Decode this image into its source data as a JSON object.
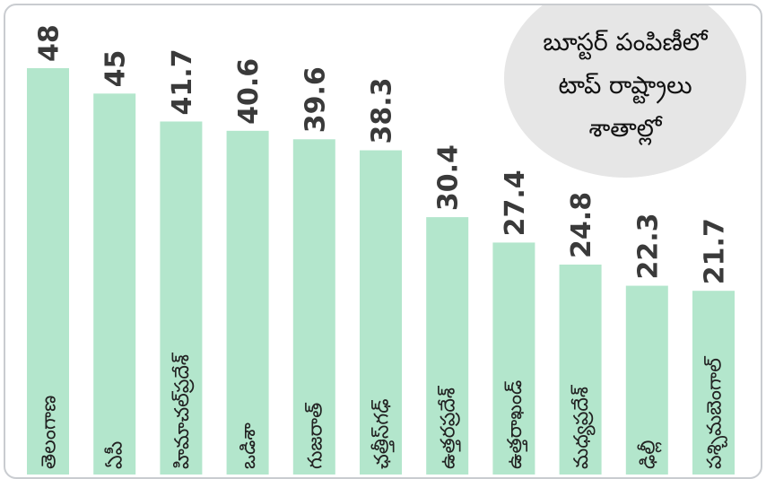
{
  "chart_data": {
    "type": "bar",
    "title_lines": [
      "బూస్టర్ పంపిణీలో",
      "టాప్ రాష్ట్రాలు",
      "శాతాల్లో"
    ],
    "categories": [
      "తెలంగాణ",
      "ఏపీ",
      "హిమాచల్‌ప్రదేశ్",
      "ఒడిశా",
      "గుజరాత్",
      "ఛత్తీస్‌గఢ్",
      "ఉత్తరప్రదేశ్",
      "ఉత్తరాఖండ్",
      "మధ్యప్రదేశ్",
      "ఢిల్లీ",
      "పశ్చిమబెంగాల్"
    ],
    "values": [
      48,
      45,
      41.7,
      40.6,
      39.6,
      38.3,
      30.4,
      27.4,
      24.8,
      22.3,
      21.7
    ],
    "value_labels": [
      "48",
      "45",
      "41.7",
      "40.6",
      "39.6",
      "38.3",
      "30.4",
      "27.4",
      "24.8",
      "22.3",
      "21.7"
    ],
    "ylim": [
      0,
      48
    ],
    "grid": false,
    "legend": "none",
    "bar_color": "#b3e6cc",
    "text_color": "#3a3a3a"
  }
}
